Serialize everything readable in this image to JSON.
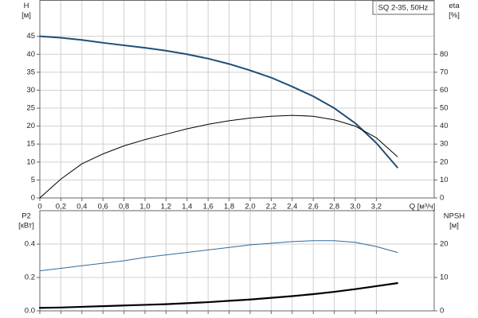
{
  "chart_data": [
    {
      "type": "line",
      "title": "SQ 2-35, 50Hz",
      "xlabel": "Q [м³/ч]",
      "ylabel": [
        "H",
        "[м]"
      ],
      "y2label": [
        "eta",
        "[%]"
      ],
      "x": [
        0,
        0.2,
        0.4,
        0.6,
        0.8,
        1.0,
        1.2,
        1.4,
        1.6,
        1.8,
        2.0,
        2.2,
        2.4,
        2.6,
        2.8,
        3.0,
        3.2,
        3.4
      ],
      "series": [
        {
          "name": "H",
          "color": "#1f4e79",
          "values": [
            45,
            44.6,
            44,
            43.2,
            42.5,
            41.8,
            41,
            40,
            38.8,
            37.3,
            35.5,
            33.5,
            31,
            28.3,
            25,
            20.8,
            15.3,
            8.5
          ]
        },
        {
          "name": "eta",
          "color": "#000000",
          "axis": "y2",
          "values": [
            0,
            10.5,
            19,
            24.5,
            29,
            32.5,
            35.5,
            38.5,
            41,
            43,
            44.5,
            45.5,
            46,
            45.5,
            43.5,
            40,
            33.5,
            23
          ]
        }
      ],
      "xlim": [
        0,
        3.75
      ],
      "xticks": [
        0,
        {
          "value": 0.2,
          "label": "0,2"
        },
        {
          "value": 0.4,
          "label": "0,4"
        },
        {
          "value": 0.6,
          "label": "0,6"
        },
        {
          "value": 0.8,
          "label": "0,8"
        },
        {
          "value": 1.0,
          "label": "1,0"
        },
        {
          "value": 1.2,
          "label": "1,2"
        },
        {
          "value": 1.4,
          "label": "1,4"
        },
        {
          "value": 1.6,
          "label": "1,6"
        },
        {
          "value": 1.8,
          "label": "1,8"
        },
        {
          "value": 2.0,
          "label": "2,0"
        },
        {
          "value": 2.2,
          "label": "2,2"
        },
        {
          "value": 2.4,
          "label": "2,4"
        },
        {
          "value": 2.6,
          "label": "2,6"
        },
        {
          "value": 2.8,
          "label": "2,8"
        },
        {
          "value": 3.0,
          "label": "3,0"
        },
        {
          "value": 3.2,
          "label": "3,2"
        }
      ],
      "ylim": [
        0,
        55
      ],
      "yticks": [
        0,
        5,
        10,
        15,
        20,
        25,
        30,
        35,
        40,
        45
      ],
      "y2lim": [
        0,
        110
      ],
      "y2ticks": [
        0,
        10,
        20,
        30,
        40,
        50,
        60,
        70,
        80
      ],
      "grid": true
    },
    {
      "type": "line",
      "ylabel": [
        "P2",
        "[кВт]"
      ],
      "y2label": [
        "NPSH",
        "[м]"
      ],
      "x": [
        0,
        0.2,
        0.4,
        0.6,
        0.8,
        1.0,
        1.2,
        1.4,
        1.6,
        1.8,
        2.0,
        2.2,
        2.4,
        2.6,
        2.8,
        3.0,
        3.2,
        3.4
      ],
      "series": [
        {
          "name": "P2",
          "color": "#2e6a9e",
          "values": [
            0.24,
            0.255,
            0.27,
            0.285,
            0.3,
            0.32,
            0.335,
            0.35,
            0.365,
            0.38,
            0.395,
            0.405,
            0.415,
            0.42,
            0.42,
            0.41,
            0.385,
            0.35
          ]
        },
        {
          "name": "NPSH",
          "color": "#000000",
          "axis": "y2",
          "values": [
            0.9,
            1.0,
            1.2,
            1.4,
            1.6,
            1.8,
            2.0,
            2.3,
            2.6,
            3.0,
            3.4,
            3.9,
            4.4,
            5.0,
            5.7,
            6.5,
            7.4,
            8.3
          ]
        }
      ],
      "xlim": [
        0,
        3.75
      ],
      "ylim": [
        0,
        0.6
      ],
      "yticks": [
        {
          "value": 0,
          "label": "0.0"
        },
        0.2,
        0.4
      ],
      "y2lim": [
        0,
        30
      ],
      "y2ticks": [
        0,
        10,
        20
      ],
      "grid": true
    }
  ]
}
